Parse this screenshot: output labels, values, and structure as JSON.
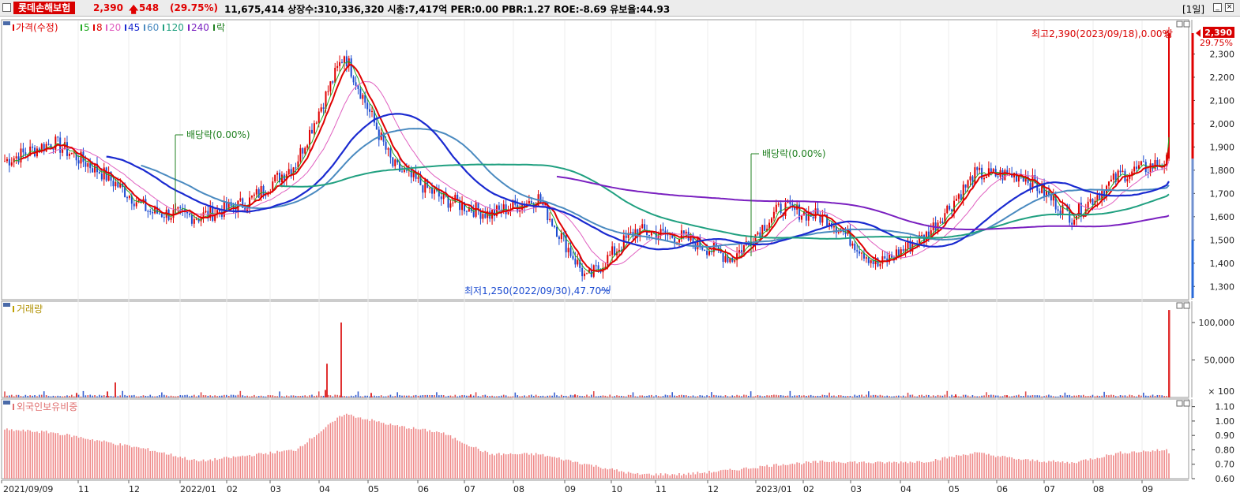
{
  "header": {
    "stock_name": "롯데손해보험",
    "price": "2,390",
    "change": "548",
    "change_pct": "(29.75%)",
    "info": "11,675,414  상장수:310,336,320  시총:7,417억  PER:0.00  PBR:1.27  ROE:-8.69  유보율:44.93",
    "period": "[1일]",
    "colors": {
      "up": "#e00000",
      "badge": "#d80000"
    }
  },
  "price_panel": {
    "legend": [
      {
        "label": "가격(수정)",
        "color": "#e00000"
      },
      {
        "label": "5",
        "color": "#22aa22"
      },
      {
        "label": "8",
        "color": "#e00000"
      },
      {
        "label": "20",
        "color": "#e060c0"
      },
      {
        "label": "45",
        "color": "#1a2ad0"
      },
      {
        "label": "60",
        "color": "#4a8ac0"
      },
      {
        "label": "120",
        "color": "#20a080"
      },
      {
        "label": "240",
        "color": "#7a20c0"
      },
      {
        "label": "락",
        "color": "#208020"
      }
    ],
    "yticks": [
      1300,
      1400,
      1500,
      1600,
      1700,
      1800,
      1900,
      2000,
      2100,
      2200,
      2300
    ],
    "ytick_labels": [
      "1,300",
      "1,400",
      "1,500",
      "1,600",
      "1,700",
      "1,800",
      "1,900",
      "2,000",
      "2,100",
      "2,200",
      "2,300"
    ],
    "current_price_label": "2,390",
    "current_pct_label": "29.75%",
    "annotations": {
      "high": "최고2,390(2023/09/18),0.00%",
      "high_marker": "상",
      "low": "최저1,250(2022/09/30),47.70%",
      "dividend1": "배당락(0.00%)",
      "dividend2": "배당락(0.00%)"
    }
  },
  "volume_panel": {
    "title": "거래량",
    "yticks": [
      100000,
      50000
    ],
    "ytick_labels": [
      "100,000",
      "50,000"
    ],
    "unit_label": "× 100"
  },
  "foreign_panel": {
    "title": "외국인보유비중",
    "yticks": [
      0.6,
      0.7,
      0.8,
      0.9,
      1.0,
      1.1
    ],
    "ytick_labels": [
      "0.60",
      "0.70",
      "0.80",
      "0.90",
      "1.00",
      "1.10"
    ]
  },
  "xaxis": {
    "labels": [
      "2021/09/09",
      "11",
      "12",
      "2022/01",
      "02",
      "03",
      "04",
      "05",
      "06",
      "07",
      "08",
      "09",
      "10",
      "11",
      "12",
      "2023/01",
      "02",
      "03",
      "04",
      "05",
      "06",
      "07",
      "08",
      "09"
    ]
  },
  "chart_data": {
    "type": "line",
    "title": "롯데손해보험",
    "x_labels": [
      "2021/09/09",
      "11",
      "12",
      "2022/01",
      "02",
      "03",
      "04",
      "05",
      "06",
      "07",
      "08",
      "09",
      "10",
      "11",
      "12",
      "2023/01",
      "02",
      "03",
      "04",
      "05",
      "06",
      "07",
      "08",
      "09"
    ],
    "price_series": {
      "name": "가격(수정)",
      "x": [
        "2021/09",
        "2021/10",
        "2021/11",
        "2021/12",
        "2022/01",
        "2022/02",
        "2022/03",
        "2022/04",
        "2022/05",
        "2022/06",
        "2022/07",
        "2022/08",
        "2022/09",
        "2022/10",
        "2022/11",
        "2022/12",
        "2023/01",
        "2023/02",
        "2023/03",
        "2023/04",
        "2023/05",
        "2023/06",
        "2023/07",
        "2023/08",
        "2023/09"
      ],
      "close": [
        1840,
        1920,
        1790,
        1620,
        1600,
        1660,
        1830,
        2300,
        1820,
        1680,
        1610,
        1680,
        1330,
        1540,
        1510,
        1420,
        1640,
        1590,
        1390,
        1520,
        1780,
        1780,
        1600,
        1780,
        2390
      ],
      "ylim": [
        1250,
        2400
      ]
    },
    "ma_series": [
      {
        "name": "45",
        "values": [
          null,
          1840,
          1830,
          1700,
          1640,
          1620,
          1700,
          1880,
          1960,
          1840,
          1720,
          1660,
          1590,
          1500,
          1500,
          1510,
          1530,
          1520,
          1480,
          1490,
          1640,
          1730,
          1720,
          1720,
          1730
        ]
      },
      {
        "name": "60",
        "values": [
          null,
          null,
          1780,
          1720,
          1660,
          1640,
          1680,
          1800,
          1920,
          1870,
          1750,
          1680,
          1620,
          1540,
          1520,
          1520,
          1530,
          1510,
          1490,
          1500,
          1590,
          1680,
          1700,
          1710,
          1720
        ]
      },
      {
        "name": "120",
        "values": [
          null,
          null,
          null,
          null,
          null,
          1730,
          1720,
          1750,
          1780,
          1790,
          1790,
          1770,
          1720,
          1650,
          1600,
          1570,
          1550,
          1530,
          1520,
          1510,
          1520,
          1560,
          1610,
          1640,
          1670
        ]
      },
      {
        "name": "240",
        "values": [
          null,
          null,
          null,
          null,
          null,
          null,
          null,
          null,
          null,
          null,
          1760,
          1740,
          1730,
          1710,
          1690,
          1670,
          1640,
          1610,
          1580,
          1560,
          1560,
          1560,
          1570,
          1580,
          1590
        ]
      }
    ],
    "volume": {
      "name": "거래량",
      "unit": "× 100",
      "ylim": [
        0,
        120000
      ],
      "spikes": [
        {
          "x": "2022/04",
          "value": 100000
        },
        {
          "x": "2022/04",
          "value": 45000
        },
        {
          "x": "2023/09/18",
          "value": 116754
        }
      ]
    },
    "foreign_ownership": {
      "name": "외국인보유비중",
      "ylim": [
        0.6,
        1.12
      ],
      "values": [
        0.94,
        0.92,
        0.86,
        0.8,
        0.72,
        0.76,
        0.8,
        1.05,
        0.97,
        0.92,
        0.77,
        0.77,
        0.7,
        0.63,
        0.63,
        0.66,
        0.7,
        0.72,
        0.71,
        0.72,
        0.78,
        0.73,
        0.71,
        0.78,
        0.8
      ]
    }
  }
}
